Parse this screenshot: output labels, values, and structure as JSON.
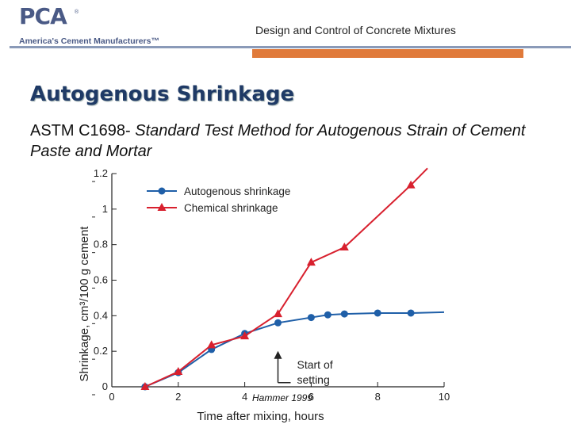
{
  "header": {
    "logo_text": "PCA",
    "logo_reg": "®",
    "logo_tagline": "America's Cement Manufacturers™",
    "title": "Design and Control of Concrete Mixtures"
  },
  "slide": {
    "title": "Autogenous Shrinkage",
    "subtitle_prefix": "ASTM C1698- ",
    "subtitle_italic": "Standard Test Method for Autogenous Strain of Cement Paste and Mortar",
    "citation": "Hammer 1999"
  },
  "colors": {
    "autogenous": "#1f5fa8",
    "chemical": "#d8202e",
    "header_rule": "#8a9ab8",
    "accent_bar": "#e07a3a",
    "title": "#1f3a66"
  },
  "chart_data": {
    "type": "line",
    "xlabel": "Time after mixing, hours",
    "ylabel": "Shrinkage, cm³/100 g cement",
    "xlim": [
      0,
      10
    ],
    "ylim": [
      0,
      1.2
    ],
    "xticks": [
      0,
      2,
      4,
      6,
      8,
      10
    ],
    "yticks": [
      0,
      0.2,
      0.4,
      0.6,
      0.8,
      1,
      1.2
    ],
    "grid": false,
    "legend_position": "top-left",
    "annotation": "Start of setting",
    "annotation_x": 5,
    "series": [
      {
        "name": "Autogenous shrinkage",
        "marker": "circle",
        "x": [
          1,
          2,
          3,
          4,
          5,
          6,
          6.5,
          7,
          8,
          9
        ],
        "y": [
          0,
          0.08,
          0.21,
          0.3,
          0.36,
          0.39,
          0.405,
          0.41,
          0.415,
          0.415
        ],
        "extend_to": [
          10,
          0.42
        ]
      },
      {
        "name": "Chemical shrinkage",
        "marker": "triangle",
        "x": [
          1,
          2,
          3,
          4,
          5,
          6,
          7,
          9
        ],
        "y": [
          0,
          0.085,
          0.235,
          0.285,
          0.41,
          0.7,
          0.785,
          1.135
        ],
        "extend_to": [
          9.5,
          1.23
        ]
      }
    ]
  }
}
